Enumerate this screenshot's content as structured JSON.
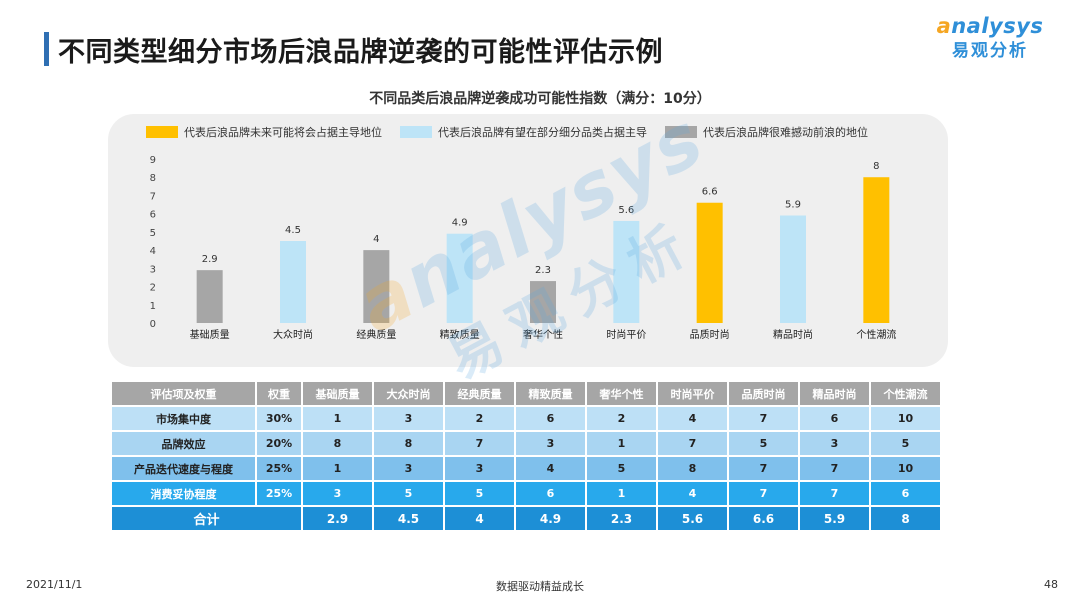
{
  "page": {
    "title": "不同类型细分市场后浪品牌逆袭的可能性评估示例",
    "logo_en": "nalysys",
    "logo_en_first": "a",
    "logo_cn": "易观分析"
  },
  "colors": {
    "leader": "#ffc000",
    "partial": "#bde4f7",
    "hard": "#a6a6a6",
    "title_accent": "#2f6fb3"
  },
  "legend": [
    {
      "label": "代表后浪品牌未来可能将会占据主导地位",
      "color": "#ffc000"
    },
    {
      "label": "代表后浪品牌有望在部分细分品类占据主导",
      "color": "#bde4f7"
    },
    {
      "label": "代表后浪品牌很难撼动前浪的地位",
      "color": "#a6a6a6"
    }
  ],
  "chart_data": {
    "type": "bar",
    "title": "不同品类后浪品牌逆袭成功可能性指数（满分：10分）",
    "categories": [
      "基础质量",
      "大众时尚",
      "经典质量",
      "精致质量",
      "奢华个性",
      "时尚平价",
      "品质时尚",
      "精品时尚",
      "个性潮流"
    ],
    "values": [
      2.9,
      4.5,
      4,
      4.9,
      2.3,
      5.6,
      6.6,
      5.9,
      8
    ],
    "value_labels": [
      "2.9",
      "4.5",
      "4",
      "4.9",
      "2.3",
      "5.6",
      "6.6",
      "5.9",
      "8"
    ],
    "bar_colors": [
      "#a6a6a6",
      "#bde4f7",
      "#a6a6a6",
      "#bde4f7",
      "#a6a6a6",
      "#bde4f7",
      "#ffc000",
      "#bde4f7",
      "#ffc000"
    ],
    "ylim": [
      0,
      9
    ],
    "yticks": [
      "0",
      "1",
      "2",
      "3",
      "4",
      "5",
      "6",
      "7",
      "8",
      "9"
    ],
    "xlabel": "",
    "ylabel": "",
    "grid": false,
    "legend_position": "top"
  },
  "table": {
    "headers": [
      "评估项及权重",
      "权重",
      "基础质量",
      "大众时尚",
      "经典质量",
      "精致质量",
      "奢华个性",
      "时尚平价",
      "品质时尚",
      "精品时尚",
      "个性潮流"
    ],
    "rows": [
      {
        "label": "市场集中度",
        "weight": "30%",
        "values": [
          "1",
          "3",
          "2",
          "6",
          "2",
          "4",
          "7",
          "6",
          "10"
        ]
      },
      {
        "label": "品牌效应",
        "weight": "20%",
        "values": [
          "8",
          "8",
          "7",
          "3",
          "1",
          "7",
          "5",
          "3",
          "5"
        ]
      },
      {
        "label": "产品迭代速度与程度",
        "weight": "25%",
        "values": [
          "1",
          "3",
          "3",
          "4",
          "5",
          "8",
          "7",
          "7",
          "10"
        ]
      },
      {
        "label": "消费妥协程度",
        "weight": "25%",
        "values": [
          "3",
          "5",
          "5",
          "6",
          "1",
          "4",
          "7",
          "7",
          "6"
        ]
      }
    ],
    "total": {
      "label": "合计",
      "values": [
        "2.9",
        "4.5",
        "4",
        "4.9",
        "2.3",
        "5.6",
        "6.6",
        "5.9",
        "8"
      ]
    }
  },
  "footer": {
    "date": "2021/11/1",
    "center": "数据驱动精益成长",
    "page_number": "48"
  }
}
